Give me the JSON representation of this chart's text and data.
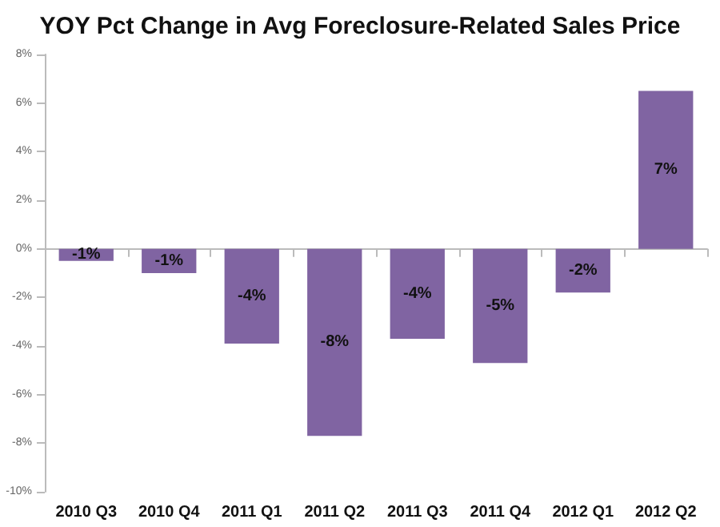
{
  "chart_data": {
    "type": "bar",
    "title": "YOY Pct Change in Avg Foreclosure-Related Sales Price",
    "categories": [
      "2010 Q3",
      "2010 Q4",
      "2011 Q1",
      "2011 Q2",
      "2011 Q3",
      "2011 Q4",
      "2012 Q1",
      "2012 Q2"
    ],
    "values": [
      -0.5,
      -1.0,
      -3.9,
      -7.7,
      -3.7,
      -4.7,
      -1.8,
      6.5
    ],
    "value_labels": [
      "-1%",
      "-1%",
      "-4%",
      "-8%",
      "-4%",
      "-5%",
      "-2%",
      "7%"
    ],
    "color": "#8064a2",
    "yticks": [
      {
        "value": -10,
        "label": "-10%"
      },
      {
        "value": -8,
        "label": "-8%"
      },
      {
        "value": -6,
        "label": "-6%"
      },
      {
        "value": -4,
        "label": "-4%"
      },
      {
        "value": -2,
        "label": "-2%"
      },
      {
        "value": 0,
        "label": "0%"
      },
      {
        "value": 2,
        "label": "2%"
      },
      {
        "value": 4,
        "label": "4%"
      },
      {
        "value": 6,
        "label": "6%"
      },
      {
        "value": 8,
        "label": "8%"
      }
    ],
    "ylim": [
      -10,
      8
    ]
  }
}
